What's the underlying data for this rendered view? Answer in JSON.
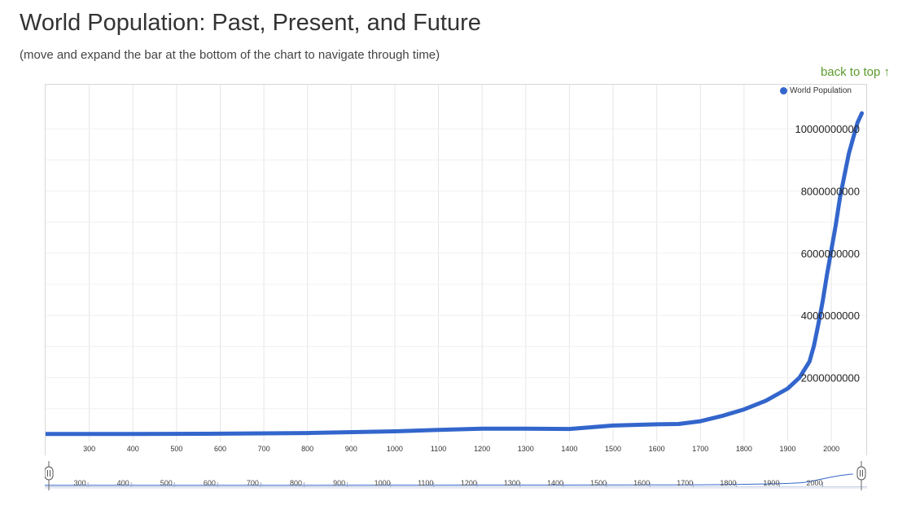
{
  "page": {
    "title": "World Population: Past, Present, and Future",
    "subtitle": "(move and expand the bar at the bottom of the chart to navigate through time)",
    "back_to_top": "back to top ↑"
  },
  "colors": {
    "series": "#3366cc",
    "grid": "#e6e6e6",
    "link": "#5c9a2e"
  },
  "chart_data": {
    "type": "line",
    "series": [
      {
        "name": "World Population",
        "x": [
          200,
          400,
          600,
          800,
          1000,
          1100,
          1200,
          1300,
          1400,
          1500,
          1600,
          1650,
          1700,
          1750,
          1800,
          1850,
          1900,
          1927,
          1950,
          1960,
          1970,
          1980,
          1990,
          2000,
          2010,
          2020,
          2030,
          2040,
          2050,
          2060,
          2070
        ],
        "values": [
          190000000,
          190000000,
          200000000,
          220000000,
          275000000,
          320000000,
          360000000,
          360000000,
          350000000,
          460000000,
          500000000,
          510000000,
          600000000,
          770000000,
          980000000,
          1260000000,
          1650000000,
          2000000000,
          2520000000,
          3020000000,
          3700000000,
          4440000000,
          5300000000,
          6100000000,
          6900000000,
          7800000000,
          8500000000,
          9200000000,
          9700000000,
          10200000000,
          10500000000
        ]
      }
    ],
    "x_ticks": [
      "300",
      "400",
      "500",
      "600",
      "700",
      "800",
      "900",
      "1000",
      "1100",
      "1200",
      "1300",
      "1400",
      "1500",
      "1600",
      "1700",
      "1800",
      "1900",
      "2000",
      "2..."
    ],
    "y_ticks": [
      "10000000000",
      "8000000000",
      "6000000000",
      "4000000000",
      "2000000000"
    ],
    "xlim": [
      200,
      2080
    ],
    "ylim": [
      0,
      10500000000
    ],
    "legend": "top-right",
    "grid": true,
    "navigator_ticks": [
      "300",
      "400",
      "500",
      "600",
      "700",
      "800",
      "900",
      "1000",
      "1100",
      "1200",
      "1300",
      "1400",
      "1500",
      "1600",
      "1700",
      "1800",
      "1900",
      "2000",
      "21..."
    ]
  }
}
